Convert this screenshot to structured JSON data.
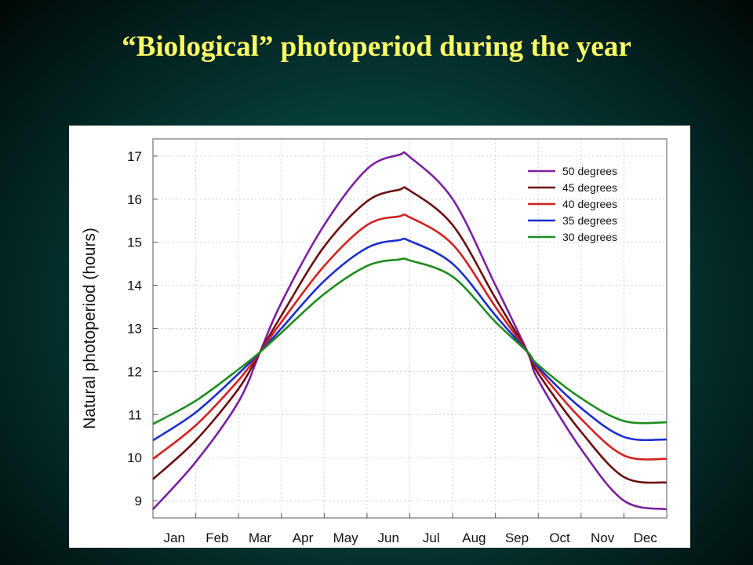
{
  "slide": {
    "title": "“Biological” photoperiod during the year"
  },
  "chart_data": {
    "type": "line",
    "title": "",
    "xlabel": "",
    "ylabel": "Natural photoperiod (hours)",
    "ylim": [
      8.6,
      17.4
    ],
    "xlim": [
      0,
      12
    ],
    "yticks": [
      9,
      10,
      11,
      12,
      13,
      14,
      15,
      16,
      17
    ],
    "months": [
      "Jan",
      "Feb",
      "Mar",
      "Apr",
      "May",
      "Jun",
      "Jul",
      "Aug",
      "Sep",
      "Oct",
      "Nov",
      "Dec"
    ],
    "grid": true,
    "legend_position": "top-right",
    "x": [
      0.0,
      1.0,
      2.0,
      2.5,
      3.0,
      4.0,
      5.0,
      5.75,
      6.0,
      7.0,
      8.0,
      8.75,
      9.0,
      10.0,
      11.0,
      12.0
    ],
    "series": [
      {
        "name": "50 degrees",
        "color": "#7b1fa2",
        "values": [
          8.8,
          9.9,
          11.3,
          12.45,
          13.6,
          15.4,
          16.7,
          17.03,
          16.98,
          16.0,
          14.0,
          12.45,
          11.8,
          10.2,
          9.0,
          8.8
        ]
      },
      {
        "name": "45 degrees",
        "color": "#6b0f0f",
        "values": [
          9.5,
          10.4,
          11.6,
          12.45,
          13.3,
          14.9,
          15.95,
          16.22,
          16.2,
          15.4,
          13.7,
          12.45,
          11.95,
          10.6,
          9.55,
          9.42
        ]
      },
      {
        "name": "40 degrees",
        "color": "#d42020",
        "values": [
          9.97,
          10.75,
          11.8,
          12.45,
          13.15,
          14.45,
          15.4,
          15.6,
          15.58,
          14.95,
          13.5,
          12.45,
          12.05,
          10.9,
          10.05,
          9.97
        ]
      },
      {
        "name": "35 degrees",
        "color": "#1a2ecf",
        "values": [
          10.4,
          11.05,
          11.95,
          12.45,
          13.0,
          14.1,
          14.87,
          15.05,
          15.03,
          14.5,
          13.3,
          12.45,
          12.1,
          11.15,
          10.48,
          10.42
        ]
      },
      {
        "name": "30 degrees",
        "color": "#1e8c1e",
        "values": [
          10.78,
          11.32,
          12.05,
          12.45,
          12.9,
          13.8,
          14.45,
          14.6,
          14.58,
          14.2,
          13.15,
          12.45,
          12.15,
          11.38,
          10.85,
          10.82
        ]
      }
    ]
  }
}
